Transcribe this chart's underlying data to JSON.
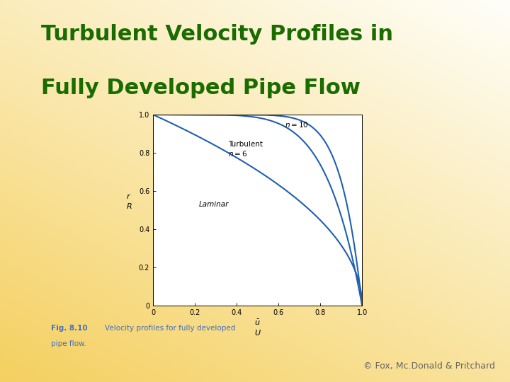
{
  "title_line1": "Turbulent Velocity Profiles in",
  "title_line2": "Fully Developed Pipe Flow",
  "title_color": "#1a6b00",
  "title_fontsize": 22,
  "curve_color": "#2060b0",
  "plot_bg": "#ffffff",
  "xlim": [
    0,
    1.0
  ],
  "ylim": [
    0,
    1.0
  ],
  "xticks": [
    0,
    0.2,
    0.4,
    0.6,
    0.8,
    1.0
  ],
  "yticks": [
    0,
    0.2,
    0.4,
    0.6,
    0.8,
    1.0
  ],
  "xtick_labels": [
    "0",
    "0.2",
    "0.4",
    "0.6",
    "0.8",
    "1.0"
  ],
  "ytick_labels": [
    "0",
    "0.2",
    "0.4",
    "0.6",
    "0.8",
    "1.0"
  ],
  "label_turbulent": "Turbulent",
  "label_n6": "n = 6",
  "label_n10": "n = 10",
  "label_laminar": "Laminar",
  "fig_caption_bold": "Fig. 8.10",
  "fig_caption_rest": "   Velocity profiles for fully developed\npipe flow.",
  "caption_color": "#4070c0",
  "copyright_text": "© Fox, Mc.Donald & Pritchard",
  "copyright_color": "#666666",
  "copyright_fontsize": 9,
  "n6": 6,
  "n10": 10
}
